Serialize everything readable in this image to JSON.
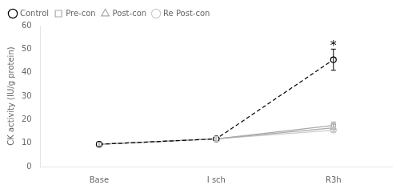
{
  "chart_data": {
    "type": "line",
    "categories": [
      "Base",
      "I sch",
      "R3h"
    ],
    "series": [
      {
        "name": "Control",
        "color": "#000000",
        "values": [
          9.5,
          11.8,
          45.5
        ],
        "errors": [
          0.6,
          1.0,
          4.5
        ],
        "marker": "circle",
        "line_style": "dashed"
      },
      {
        "name": "Pre-con",
        "color": "#aaaaaa",
        "values": [
          9.5,
          11.8,
          17.5
        ],
        "errors": [
          0.6,
          1.0,
          1.5
        ],
        "marker": "square",
        "line_style": "solid"
      },
      {
        "name": "Post-con",
        "color": "#aaaaaa",
        "values": [
          9.5,
          11.8,
          16.5
        ],
        "errors": [
          0.6,
          1.0,
          1.5
        ],
        "marker": "triangle",
        "line_style": "solid"
      },
      {
        "name": "Re Post-con",
        "color": "#cccccc",
        "values": [
          9.5,
          11.8,
          15.5
        ],
        "errors": [
          0.6,
          1.0,
          1.0
        ],
        "marker": "circle",
        "line_style": "solid"
      }
    ],
    "ylabel": "CK activity (IU/g protein)",
    "ylim": [
      0,
      60
    ],
    "yticks": [
      0,
      10,
      20,
      30,
      40,
      50,
      60
    ],
    "annotations": [
      {
        "text": "*",
        "x": "R3h",
        "y": 50.5
      }
    ],
    "legend": "upper left",
    "grid": false
  }
}
